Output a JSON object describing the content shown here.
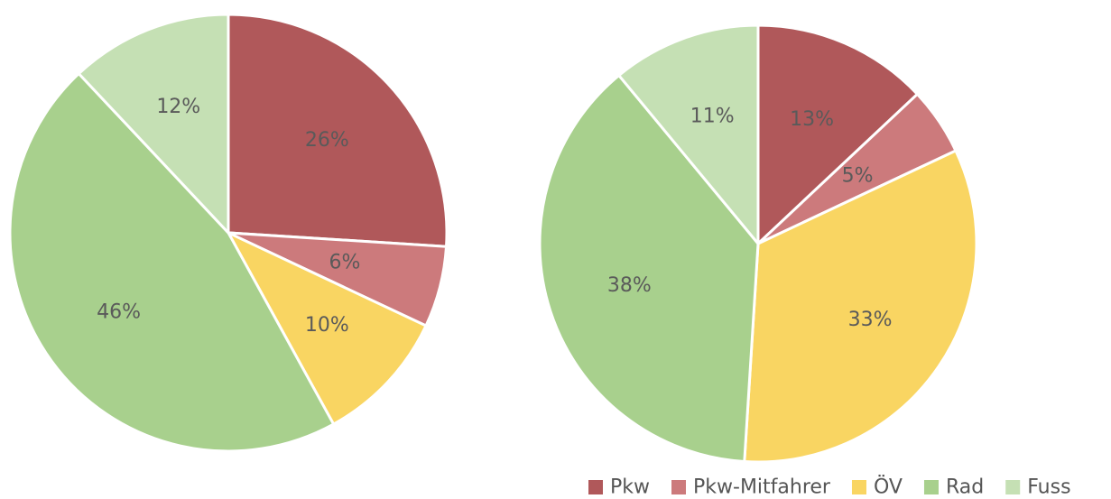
{
  "chart_data": [
    {
      "type": "pie",
      "slices": [
        {
          "label": "Pkw",
          "value": 26,
          "value_label": "26%"
        },
        {
          "label": "Pkw-Mitfahrer",
          "value": 6,
          "value_label": "6%"
        },
        {
          "label": "ÖV",
          "value": 10,
          "value_label": "10%"
        },
        {
          "label": "Rad",
          "value": 46,
          "value_label": "46%"
        },
        {
          "label": "Fuss",
          "value": 12,
          "value_label": "12%"
        }
      ]
    },
    {
      "type": "pie",
      "slices": [
        {
          "label": "Pkw",
          "value": 13,
          "value_label": "13%"
        },
        {
          "label": "Pkw-Mitfahrer",
          "value": 5,
          "value_label": "5%"
        },
        {
          "label": "ÖV",
          "value": 33,
          "value_label": "33%"
        },
        {
          "label": "Rad",
          "value": 38,
          "value_label": "38%"
        },
        {
          "label": "Fuss",
          "value": 11,
          "value_label": "11%"
        }
      ]
    }
  ],
  "legend": {
    "placement": "bottom-right",
    "items": [
      {
        "label": "Pkw",
        "color": "#b0585a"
      },
      {
        "label": "Pkw-Mitfahrer",
        "color": "#cc7a7c"
      },
      {
        "label": "ÖV",
        "color": "#f9d562"
      },
      {
        "label": "Rad",
        "color": "#a8d08d"
      },
      {
        "label": "Fuss",
        "color": "#c5e0b4"
      }
    ]
  }
}
